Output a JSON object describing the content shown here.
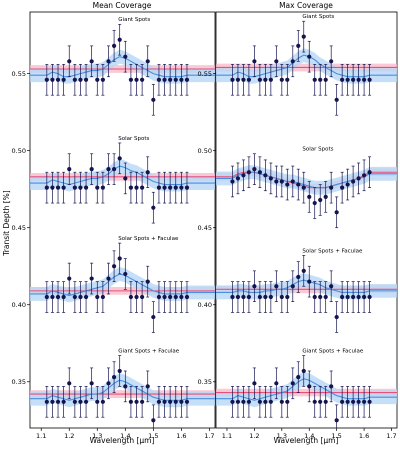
{
  "figure": {
    "ylabel": "Transit Depth [%]",
    "xlabel": "Wavelength [μm]"
  },
  "colors": {
    "data_points": "#14144f",
    "red_model": "#e8507a",
    "red_band": "#f7b8c8",
    "blue_model": "#4a8ee0",
    "blue_band": "#b6d7f6"
  },
  "chart_data": [
    {
      "type": "scatter",
      "title": "Mean Coverage",
      "xlabel": "Wavelength [μm]",
      "ylabel": "Transit Depth [%]",
      "xlim": [
        1.06,
        1.72
      ],
      "ylim": [
        0.32,
        0.59
      ],
      "xticks": [
        "1.1",
        "1.2",
        "1.3",
        "1.4",
        "1.5",
        "1.6",
        "1.7"
      ],
      "yticks": [
        "0.35",
        "0.40",
        "0.45",
        "0.50",
        "0.55"
      ],
      "grid": false,
      "panels": [
        {
          "label": "Giant Spots",
          "x": [
            1.12,
            1.14,
            1.16,
            1.18,
            1.2,
            1.22,
            1.24,
            1.26,
            1.28,
            1.3,
            1.32,
            1.34,
            1.36,
            1.38,
            1.4,
            1.42,
            1.44,
            1.46,
            1.48,
            1.5,
            1.52,
            1.54,
            1.56,
            1.58,
            1.6,
            1.62
          ],
          "y": [
            0.546,
            0.546,
            0.546,
            0.546,
            0.558,
            0.546,
            0.546,
            0.546,
            0.558,
            0.546,
            0.546,
            0.558,
            0.568,
            0.572,
            0.561,
            0.546,
            0.546,
            0.546,
            0.558,
            0.533,
            0.546,
            0.546,
            0.546,
            0.546,
            0.546,
            0.546
          ],
          "yerr": 0.01,
          "model_flat": 0.553,
          "model_spot": [
            0.549,
            0.551,
            0.55,
            0.548,
            0.548,
            0.549,
            0.55,
            0.551,
            0.552,
            0.552,
            0.553,
            0.556,
            0.559,
            0.561,
            0.56,
            0.558,
            0.556,
            0.554,
            0.552,
            0.55,
            0.549,
            0.548,
            0.548,
            0.548,
            0.548,
            0.549
          ]
        },
        {
          "label": "Solar Spots",
          "x": [
            1.12,
            1.14,
            1.16,
            1.18,
            1.2,
            1.22,
            1.24,
            1.26,
            1.28,
            1.3,
            1.32,
            1.34,
            1.36,
            1.38,
            1.4,
            1.42,
            1.44,
            1.46,
            1.48,
            1.5,
            1.52,
            1.54,
            1.56,
            1.58,
            1.6,
            1.62
          ],
          "y": [
            0.476,
            0.476,
            0.476,
            0.476,
            0.488,
            0.476,
            0.476,
            0.476,
            0.488,
            0.476,
            0.476,
            0.488,
            0.488,
            0.495,
            0.482,
            0.476,
            0.476,
            0.476,
            0.486,
            0.463,
            0.476,
            0.476,
            0.476,
            0.476,
            0.476,
            0.476
          ],
          "yerr": 0.01,
          "model_flat": 0.483,
          "model_spot": [
            0.479,
            0.481,
            0.48,
            0.479,
            0.478,
            0.479,
            0.48,
            0.481,
            0.482,
            0.482,
            0.483,
            0.485,
            0.488,
            0.49,
            0.489,
            0.487,
            0.486,
            0.484,
            0.482,
            0.48,
            0.479,
            0.478,
            0.478,
            0.478,
            0.478,
            0.479
          ]
        },
        {
          "label": "Solar Spots + Faculae",
          "x": [
            1.12,
            1.14,
            1.16,
            1.18,
            1.2,
            1.22,
            1.24,
            1.26,
            1.28,
            1.3,
            1.32,
            1.34,
            1.36,
            1.38,
            1.4,
            1.42,
            1.44,
            1.46,
            1.48,
            1.5,
            1.52,
            1.54,
            1.56,
            1.58,
            1.6,
            1.62
          ],
          "y": [
            0.405,
            0.405,
            0.405,
            0.405,
            0.417,
            0.405,
            0.405,
            0.405,
            0.417,
            0.405,
            0.405,
            0.417,
            0.425,
            0.43,
            0.42,
            0.405,
            0.405,
            0.405,
            0.415,
            0.392,
            0.405,
            0.405,
            0.405,
            0.405,
            0.405,
            0.405
          ],
          "yerr": 0.01,
          "model_flat": 0.409,
          "model_spot": [
            0.407,
            0.409,
            0.408,
            0.407,
            0.406,
            0.407,
            0.408,
            0.409,
            0.41,
            0.411,
            0.412,
            0.415,
            0.418,
            0.42,
            0.419,
            0.417,
            0.415,
            0.413,
            0.411,
            0.409,
            0.408,
            0.407,
            0.407,
            0.407,
            0.407,
            0.408
          ]
        },
        {
          "label": "Giant Spots + Faculae",
          "x": [
            1.12,
            1.14,
            1.16,
            1.18,
            1.2,
            1.22,
            1.24,
            1.26,
            1.28,
            1.3,
            1.32,
            1.34,
            1.36,
            1.38,
            1.4,
            1.42,
            1.44,
            1.46,
            1.48,
            1.5,
            1.52,
            1.54,
            1.56,
            1.58,
            1.6,
            1.62
          ],
          "y": [
            0.337,
            0.337,
            0.337,
            0.337,
            0.349,
            0.337,
            0.337,
            0.337,
            0.349,
            0.337,
            0.337,
            0.349,
            0.353,
            0.357,
            0.347,
            0.337,
            0.337,
            0.337,
            0.347,
            0.325,
            0.337,
            0.337,
            0.337,
            0.337,
            0.337,
            0.337
          ],
          "yerr": 0.01,
          "model_flat": 0.342,
          "model_spot": [
            0.339,
            0.341,
            0.34,
            0.339,
            0.338,
            0.339,
            0.34,
            0.341,
            0.342,
            0.342,
            0.343,
            0.346,
            0.349,
            0.351,
            0.35,
            0.348,
            0.346,
            0.344,
            0.342,
            0.34,
            0.339,
            0.338,
            0.338,
            0.338,
            0.338,
            0.339
          ]
        }
      ]
    },
    {
      "type": "scatter",
      "title": "Max Coverage",
      "xlabel": "Wavelength [μm]",
      "ylabel": "",
      "xlim": [
        1.06,
        1.72
      ],
      "ylim": [
        0.32,
        0.59
      ],
      "xticks": [
        "1.1",
        "1.2",
        "1.3",
        "1.4",
        "1.5",
        "1.6",
        "1.7"
      ],
      "yticks": [
        "0.35",
        "0.40",
        "0.45",
        "0.50",
        "0.55"
      ],
      "grid": false,
      "panels": [
        {
          "label": "Giant Spots",
          "x": [
            1.12,
            1.14,
            1.16,
            1.18,
            1.2,
            1.22,
            1.24,
            1.26,
            1.28,
            1.3,
            1.32,
            1.34,
            1.36,
            1.38,
            1.4,
            1.42,
            1.44,
            1.46,
            1.48,
            1.5,
            1.52,
            1.54,
            1.56,
            1.58,
            1.6,
            1.62
          ],
          "y": [
            0.546,
            0.546,
            0.546,
            0.546,
            0.558,
            0.546,
            0.546,
            0.546,
            0.558,
            0.546,
            0.546,
            0.558,
            0.568,
            0.574,
            0.561,
            0.546,
            0.546,
            0.546,
            0.558,
            0.533,
            0.546,
            0.546,
            0.546,
            0.546,
            0.546,
            0.546
          ],
          "yerr": 0.01,
          "model_flat": 0.554,
          "model_spot": [
            0.549,
            0.551,
            0.55,
            0.548,
            0.548,
            0.549,
            0.55,
            0.551,
            0.552,
            0.553,
            0.554,
            0.557,
            0.56,
            0.562,
            0.561,
            0.559,
            0.556,
            0.554,
            0.552,
            0.55,
            0.549,
            0.548,
            0.548,
            0.548,
            0.548,
            0.549
          ]
        },
        {
          "label": "Solar Spots",
          "x": [
            1.12,
            1.14,
            1.16,
            1.18,
            1.2,
            1.22,
            1.24,
            1.26,
            1.28,
            1.3,
            1.32,
            1.34,
            1.36,
            1.38,
            1.4,
            1.42,
            1.44,
            1.46,
            1.48,
            1.5,
            1.52,
            1.54,
            1.56,
            1.58,
            1.6,
            1.62
          ],
          "y": [
            0.48,
            0.482,
            0.484,
            0.486,
            0.488,
            0.486,
            0.484,
            0.482,
            0.48,
            0.48,
            0.478,
            0.48,
            0.478,
            0.476,
            0.47,
            0.466,
            0.468,
            0.47,
            0.476,
            0.46,
            0.476,
            0.478,
            0.48,
            0.482,
            0.484,
            0.486
          ],
          "yerr": 0.01,
          "model_flat": null,
          "model_curve": [
            0.483,
            0.485,
            0.486,
            0.486,
            0.486,
            0.485,
            0.484,
            0.483,
            0.482,
            0.481,
            0.48,
            0.479,
            0.478,
            0.477,
            0.476,
            0.476,
            0.476,
            0.476,
            0.477,
            0.478,
            0.479,
            0.48,
            0.481,
            0.482,
            0.484,
            0.486
          ],
          "model_spot": [
            0.482,
            0.484,
            0.485,
            0.486,
            0.486,
            0.485,
            0.484,
            0.483,
            0.482,
            0.481,
            0.48,
            0.48,
            0.479,
            0.478,
            0.477,
            0.476,
            0.476,
            0.476,
            0.477,
            0.478,
            0.479,
            0.48,
            0.481,
            0.482,
            0.483,
            0.485
          ]
        },
        {
          "label": "Solar Spots + Faculae",
          "x": [
            1.12,
            1.14,
            1.16,
            1.18,
            1.2,
            1.22,
            1.24,
            1.26,
            1.28,
            1.3,
            1.32,
            1.34,
            1.36,
            1.38,
            1.4,
            1.42,
            1.44,
            1.46,
            1.48,
            1.5,
            1.52,
            1.54,
            1.56,
            1.58,
            1.6,
            1.62
          ],
          "y": [
            0.405,
            0.405,
            0.405,
            0.405,
            0.412,
            0.405,
            0.405,
            0.405,
            0.412,
            0.405,
            0.405,
            0.412,
            0.418,
            0.422,
            0.415,
            0.405,
            0.405,
            0.405,
            0.412,
            0.392,
            0.405,
            0.405,
            0.405,
            0.405,
            0.405,
            0.405
          ],
          "yerr": 0.01,
          "model_flat": 0.41,
          "model_spot": [
            0.408,
            0.409,
            0.409,
            0.408,
            0.408,
            0.408,
            0.409,
            0.409,
            0.41,
            0.41,
            0.411,
            0.413,
            0.415,
            0.416,
            0.415,
            0.414,
            0.413,
            0.411,
            0.41,
            0.409,
            0.408,
            0.408,
            0.408,
            0.408,
            0.408,
            0.409
          ]
        },
        {
          "label": "Giant Spots + Faculae",
          "x": [
            1.12,
            1.14,
            1.16,
            1.18,
            1.2,
            1.22,
            1.24,
            1.26,
            1.28,
            1.3,
            1.32,
            1.34,
            1.36,
            1.38,
            1.4,
            1.42,
            1.44,
            1.46,
            1.48,
            1.5,
            1.52,
            1.54,
            1.56,
            1.58,
            1.6,
            1.62
          ],
          "y": [
            0.337,
            0.337,
            0.337,
            0.337,
            0.349,
            0.337,
            0.337,
            0.337,
            0.349,
            0.337,
            0.337,
            0.349,
            0.353,
            0.357,
            0.347,
            0.337,
            0.337,
            0.337,
            0.347,
            0.325,
            0.337,
            0.337,
            0.337,
            0.337,
            0.337,
            0.337
          ],
          "yerr": 0.01,
          "model_flat": 0.343,
          "model_spot": [
            0.339,
            0.341,
            0.34,
            0.339,
            0.338,
            0.339,
            0.34,
            0.341,
            0.342,
            0.343,
            0.344,
            0.347,
            0.35,
            0.352,
            0.351,
            0.349,
            0.347,
            0.345,
            0.343,
            0.341,
            0.34,
            0.339,
            0.339,
            0.339,
            0.339,
            0.34
          ]
        }
      ]
    }
  ]
}
